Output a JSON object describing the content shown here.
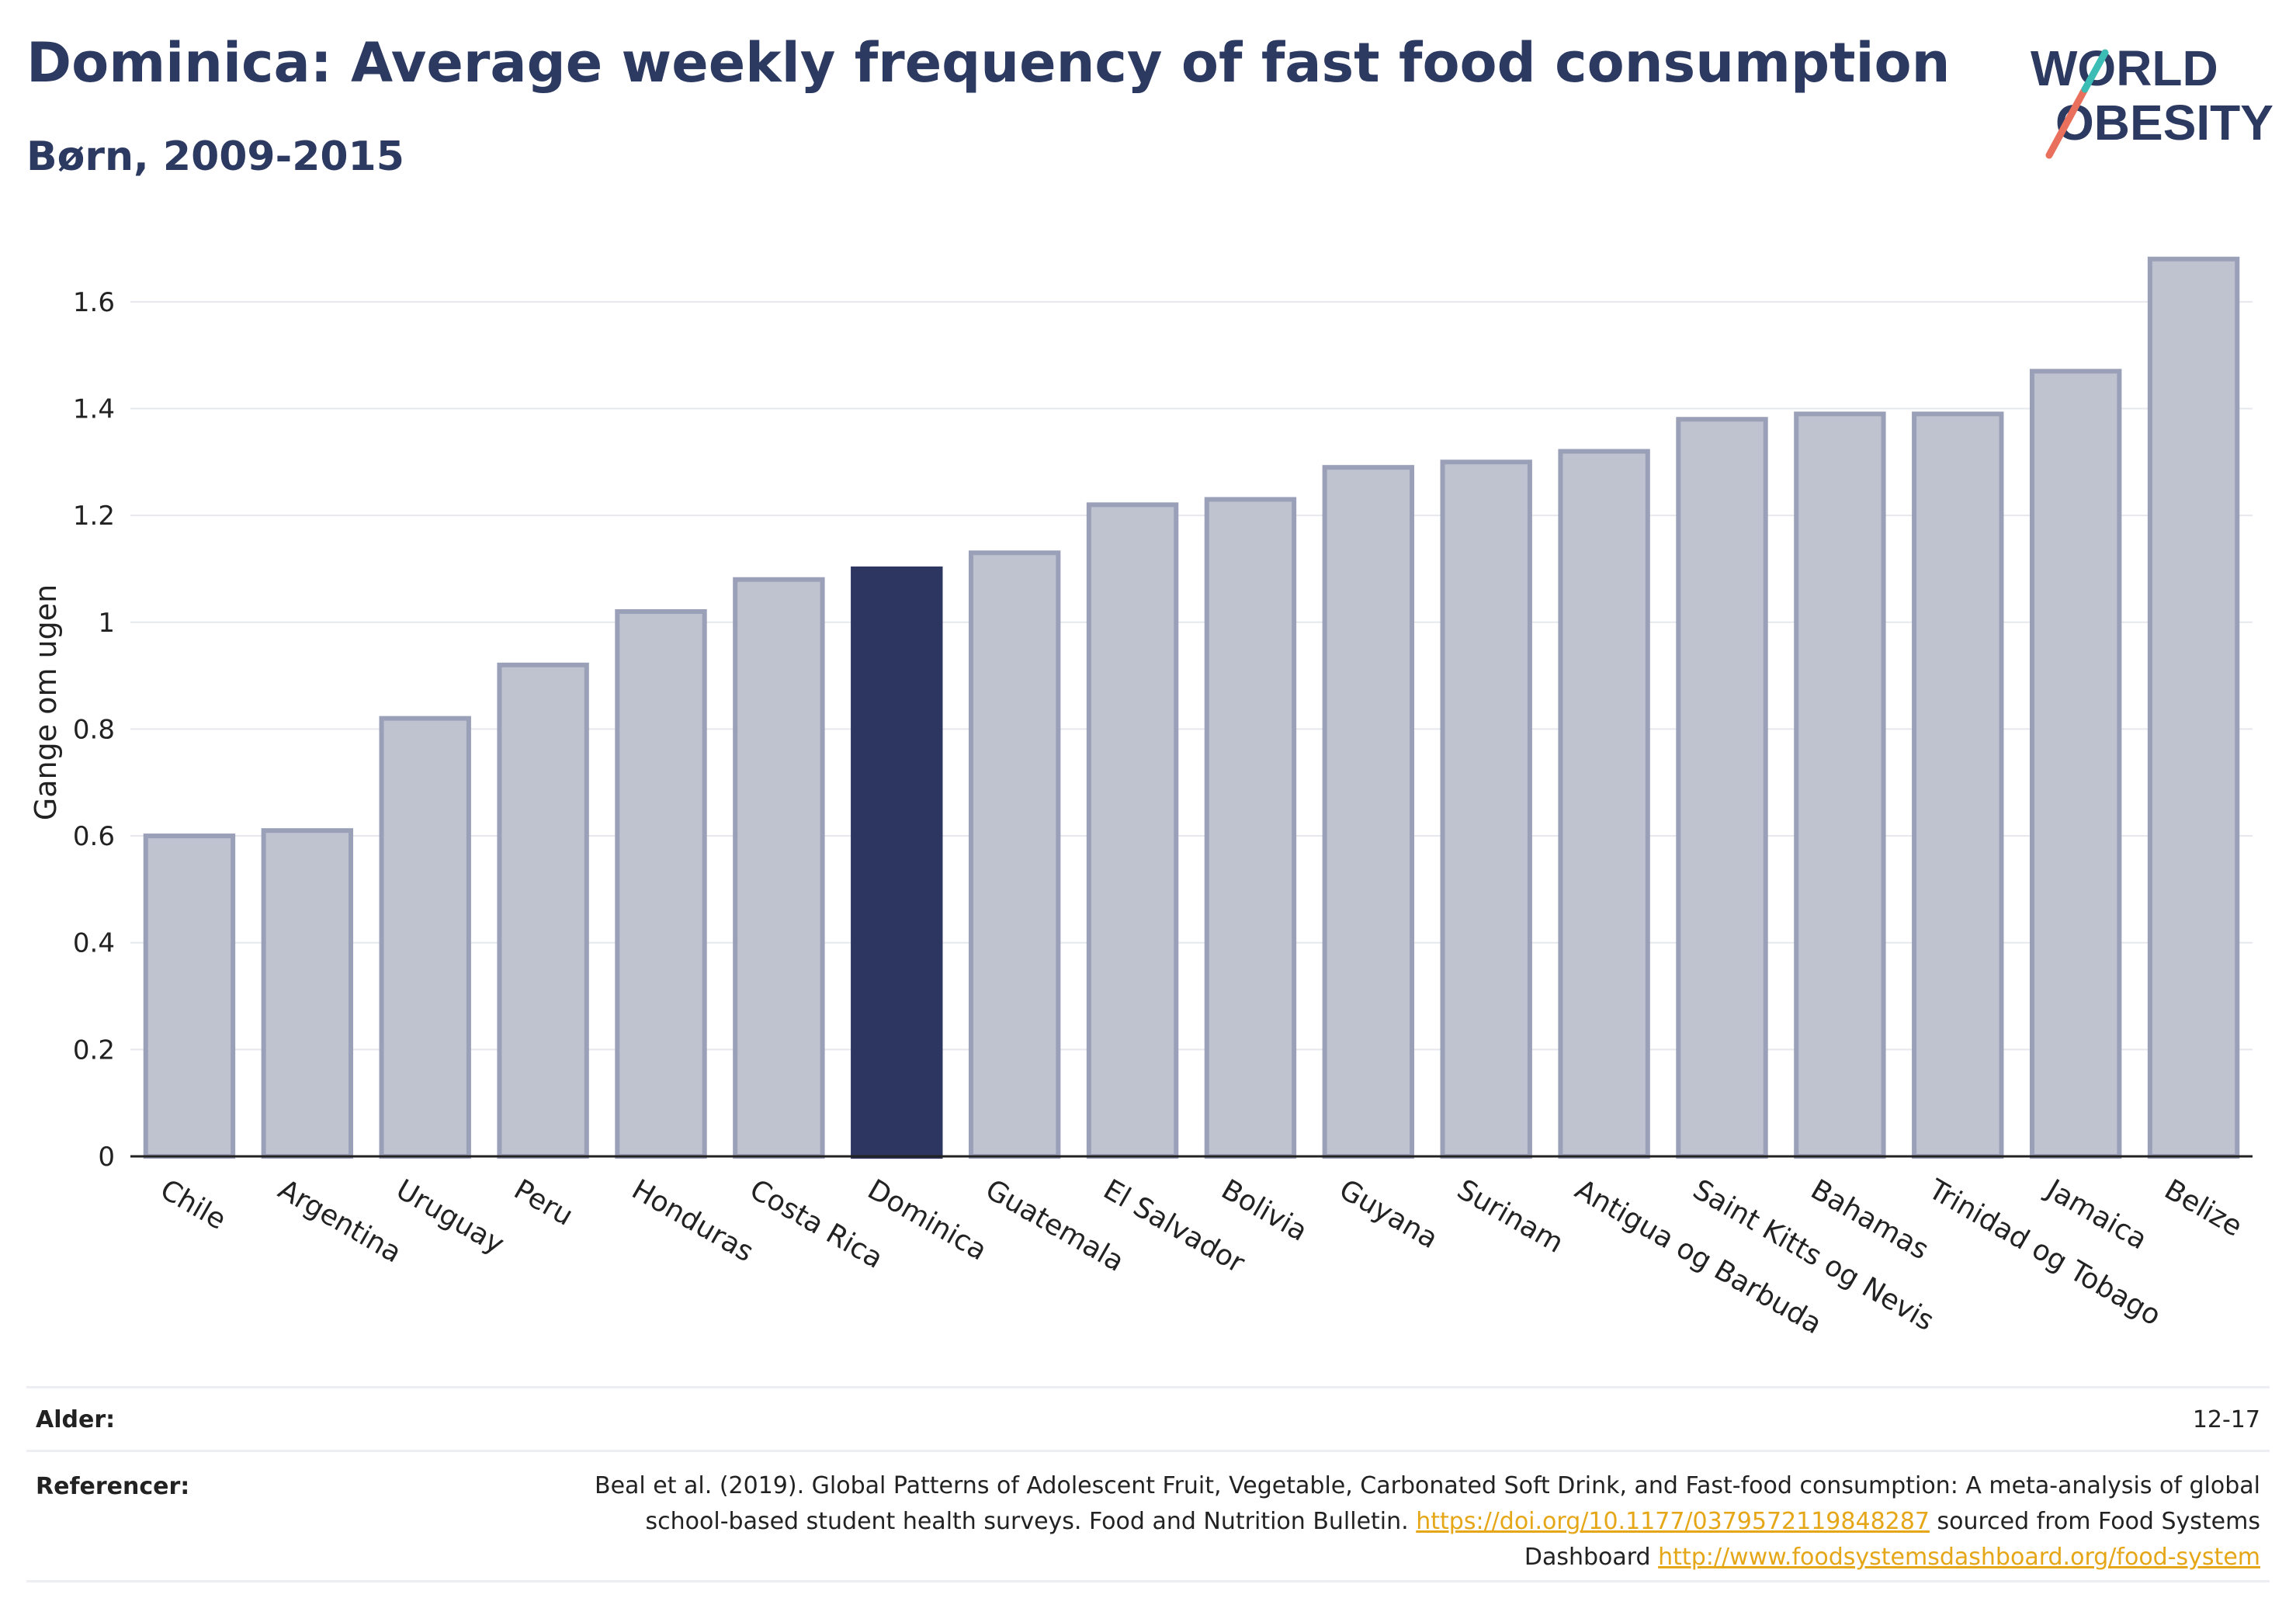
{
  "header": {
    "title": "Dominica: Average weekly frequency of fast food consumption",
    "subtitle": "Børn, 2009-2015"
  },
  "logo": {
    "line1": "WORLD",
    "line2": "OBESITY"
  },
  "chart_data": {
    "type": "bar",
    "ylabel": "Gange om ugen",
    "ylim": [
      0,
      1.7
    ],
    "yticks": [
      0,
      0.2,
      0.4,
      0.6,
      0.8,
      1,
      1.2,
      1.4,
      1.6
    ],
    "grid": true,
    "highlight": "Dominica",
    "colors": {
      "bar": "#bfc2cf",
      "bar_border": "#9aa0b8",
      "highlight": "#2c3660"
    },
    "categories": [
      "Chile",
      "Argentina",
      "Uruguay",
      "Peru",
      "Honduras",
      "Costa Rica",
      "Dominica",
      "Guatemala",
      "El Salvador",
      "Bolivia",
      "Guyana",
      "Surinam",
      "Antigua og Barbuda",
      "Saint Kitts og Nevis",
      "Bahamas",
      "Trinidad og Tobago",
      "Jamaica",
      "Belize"
    ],
    "values": [
      0.6,
      0.61,
      0.82,
      0.92,
      1.02,
      1.08,
      1.1,
      1.13,
      1.22,
      1.23,
      1.29,
      1.3,
      1.32,
      1.38,
      1.39,
      1.39,
      1.47,
      1.68
    ]
  },
  "meta": {
    "age_label": "Alder:",
    "age_value": "12-17",
    "ref_label": "Referencer:",
    "ref_text_1": "Beal et al. (2019). Global Patterns of Adolescent Fruit, Vegetable, Carbonated Soft Drink, and Fast-food consumption: A meta-analysis of global school-based student health surveys. Food and Nutrition Bulletin.",
    "ref_link_1": "https://doi.org/10.1177/0379572119848287",
    "ref_text_2": "sourced from Food Systems Dashboard",
    "ref_link_2": "http://www.foodsystemsdashboard.org/food-system"
  }
}
